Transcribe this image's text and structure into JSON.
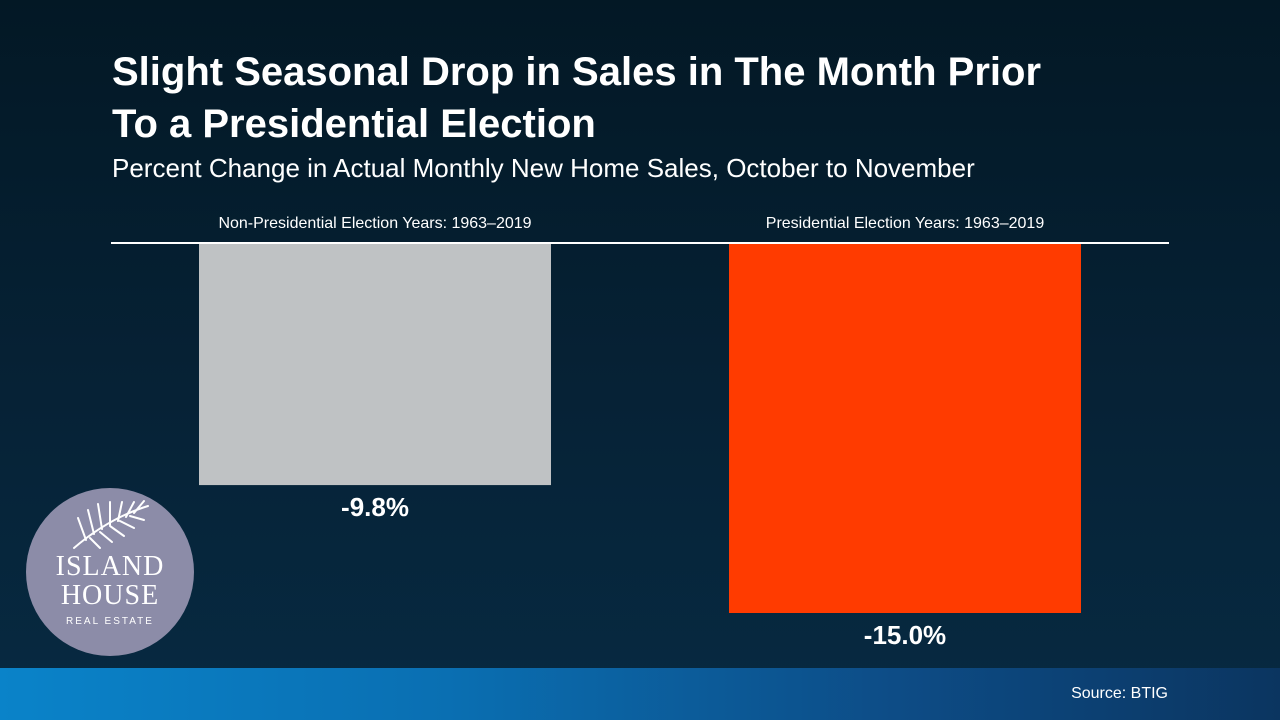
{
  "title_lines": [
    "Slight Seasonal Drop in Sales in The Month Prior",
    "To a Presidential Election"
  ],
  "subtitle": "Percent Change in Actual Monthly New Home Sales, October to November",
  "source": "Source: BTIG",
  "logo": {
    "line1": "ISLAND",
    "line2": "HOUSE",
    "line3": "REAL ESTATE"
  },
  "colors": {
    "background": "#04192a",
    "non_presidential_bar": "#bfc2c4",
    "presidential_bar": "#ff3b00",
    "footer_band": "#0a7cc0"
  },
  "chart_data": {
    "type": "bar",
    "orientation": "vertical",
    "title": "Slight Seasonal Drop in Sales in The Month Prior To a Presidential Election",
    "subtitle": "Percent Change in Actual Monthly New Home Sales, October to November",
    "categories": [
      "Non-Presidential Election Years: 1963–2019",
      "Presidential Election Years: 1963–2019"
    ],
    "values": [
      -9.8,
      -15.0
    ],
    "data_labels": [
      "-9.8%",
      "-15.0%"
    ],
    "unit": "%",
    "ylim": [
      -15.0,
      0
    ],
    "grid": false,
    "axis_line_at_zero": true,
    "legend": "none",
    "bar_colors": [
      "#bfc2c4",
      "#ff3b00"
    ]
  }
}
